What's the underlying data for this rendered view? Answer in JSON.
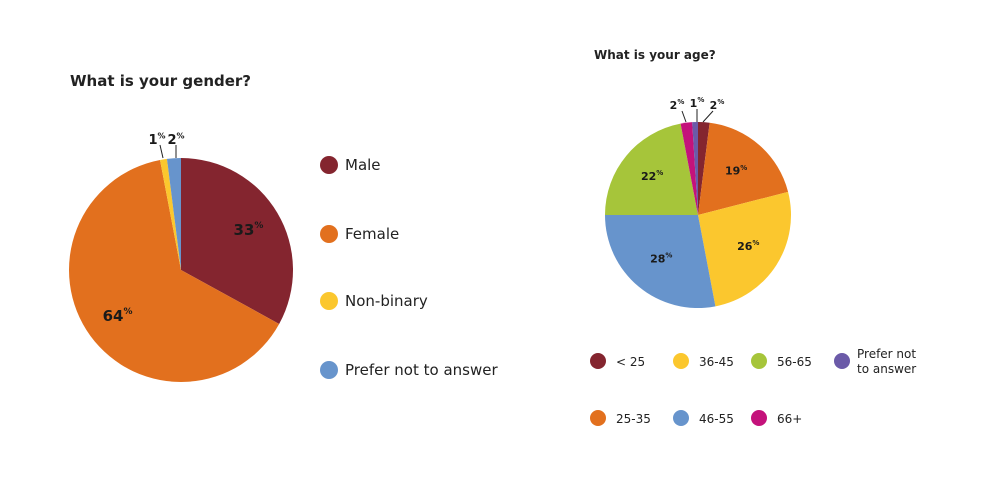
{
  "chart_data": [
    {
      "type": "pie",
      "title": "What is your gender?",
      "categories": [
        "Male",
        "Female",
        "Non-binary",
        "Prefer not to answer"
      ],
      "values": [
        33,
        64,
        1,
        2
      ],
      "value_labels": [
        "33",
        "64",
        "1",
        "2"
      ],
      "unit": "%",
      "colors": [
        "#84252f",
        "#e2701e",
        "#fbc72e",
        "#6794cc"
      ],
      "legend": "right"
    },
    {
      "type": "pie",
      "title": "What is your age?",
      "categories": [
        "< 25",
        "25-35",
        "36-45",
        "46-55",
        "56-65",
        "66+",
        "Prefer not to answer"
      ],
      "legend_labels": [
        "< 25",
        "25-35",
        "36-45",
        "46-55",
        "56-65",
        "66+",
        "Prefer not\nto answer"
      ],
      "values": [
        2,
        19,
        26,
        28,
        22,
        2,
        1
      ],
      "value_labels": [
        "2",
        "19",
        "26",
        "28",
        "22",
        "2",
        "1"
      ],
      "unit": "%",
      "colors": [
        "#84252f",
        "#e2701e",
        "#fbc72e",
        "#6794cc",
        "#a6c53a",
        "#c4127b",
        "#6b5aa8"
      ],
      "legend": "bottom"
    }
  ]
}
